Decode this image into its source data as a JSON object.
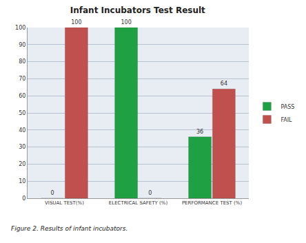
{
  "chart_data": {
    "type": "bar",
    "title": "Infant Incubators Test Result",
    "categories": [
      "VISUAL TEST(%)",
      "ELECTRICAL SAFETY (%)",
      "PERFORMANCE TEST (%)"
    ],
    "series": [
      {
        "name": "PASS",
        "color": "#1fa043",
        "values": [
          0,
          100,
          36
        ]
      },
      {
        "name": "FAIL",
        "color": "#c0504d",
        "values": [
          100,
          0,
          64
        ]
      }
    ],
    "ylim": [
      0,
      100
    ],
    "yticks": [
      0,
      10,
      20,
      30,
      40,
      50,
      60,
      70,
      80,
      90,
      100
    ],
    "grid": true,
    "legend": "right",
    "data_labels": true,
    "annotations": [
      "Figure 2. Results of infant incubators."
    ]
  }
}
